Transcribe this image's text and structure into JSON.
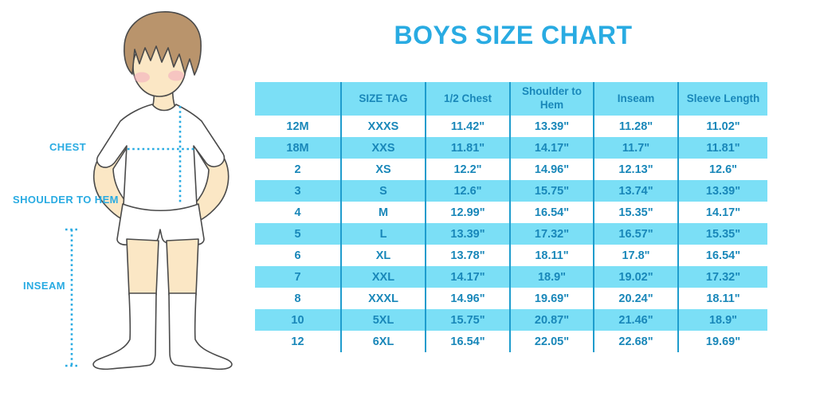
{
  "title": "BOYS SIZE CHART",
  "illustration": {
    "description": "faceless boy with brown hair, white t-shirt, white shorts and white knee socks",
    "labels": {
      "chest": "CHEST",
      "shoulder_to_hem": "SHOULDER TO HEM",
      "inseam": "INSEAM"
    }
  },
  "chart_data": {
    "type": "table",
    "title": "BOYS SIZE CHART",
    "columns": [
      "",
      "SIZE TAG",
      "1/2 Chest",
      "Shoulder to Hem",
      "Inseam",
      "Sleeve Length"
    ],
    "rows": [
      [
        "12M",
        "XXXS",
        "11.42\"",
        "13.39\"",
        "11.28\"",
        "11.02\""
      ],
      [
        "18M",
        "XXS",
        "11.81\"",
        "14.17\"",
        "11.7\"",
        "11.81\""
      ],
      [
        "2",
        "XS",
        "12.2\"",
        "14.96\"",
        "12.13\"",
        "12.6\""
      ],
      [
        "3",
        "S",
        "12.6\"",
        "15.75\"",
        "13.74\"",
        "13.39\""
      ],
      [
        "4",
        "M",
        "12.99\"",
        "16.54\"",
        "15.35\"",
        "14.17\""
      ],
      [
        "5",
        "L",
        "13.39\"",
        "17.32\"",
        "16.57\"",
        "15.35\""
      ],
      [
        "6",
        "XL",
        "13.78\"",
        "18.11\"",
        "17.8\"",
        "16.54\""
      ],
      [
        "7",
        "XXL",
        "14.17\"",
        "18.9\"",
        "19.02\"",
        "17.32\""
      ],
      [
        "8",
        "XXXL",
        "14.96\"",
        "19.69\"",
        "20.24\"",
        "18.11\""
      ],
      [
        "10",
        "5XL",
        "15.75\"",
        "20.87\"",
        "21.46\"",
        "18.9\""
      ],
      [
        "12",
        "6XL",
        "16.54\"",
        "22.05\"",
        "22.68\"",
        "19.69\""
      ]
    ],
    "row_striping": "alternating white and light blue, starting white",
    "legend_position": "none",
    "grid": "vertical separators only"
  },
  "colors": {
    "accent_blue": "#29ABE2",
    "table_text_blue": "#1987B9",
    "stripe_blue": "#7BDFF6",
    "separator_blue": "#1E9CCD",
    "skin": "#FBE7C5",
    "hair_brown": "#B9946C",
    "cheek_pink": "#F2A9BE",
    "outline_gray": "#4A4A4A"
  }
}
